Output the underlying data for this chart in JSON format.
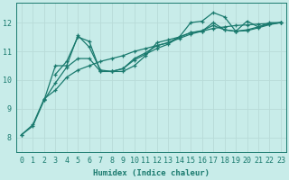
{
  "bg_color": "#c8ece9",
  "grid_color": "#b8dbd8",
  "line_color": "#1a7a6e",
  "xlabel": "Humidex (Indice chaleur)",
  "xlim": [
    -0.5,
    23.5
  ],
  "ylim": [
    7.5,
    12.7
  ],
  "yticks": [
    8,
    9,
    10,
    11,
    12
  ],
  "xticks": [
    0,
    1,
    2,
    3,
    4,
    5,
    6,
    7,
    8,
    9,
    10,
    11,
    12,
    13,
    14,
    15,
    16,
    17,
    18,
    19,
    20,
    21,
    22,
    23
  ],
  "series": [
    {
      "x": [
        0,
        1,
        2,
        3,
        4,
        5,
        6,
        7,
        8,
        9,
        10,
        11,
        12,
        13,
        14,
        15,
        16,
        17,
        18,
        19,
        20,
        21,
        22,
        23
      ],
      "y": [
        8.1,
        8.4,
        9.3,
        10.5,
        10.5,
        11.55,
        11.15,
        10.35,
        10.3,
        10.3,
        10.5,
        10.85,
        11.3,
        11.4,
        11.5,
        12.0,
        12.05,
        12.35,
        12.2,
        11.7,
        12.05,
        11.85,
        12.0,
        12.0
      ]
    },
    {
      "x": [
        3,
        4,
        5,
        6,
        7,
        8,
        9,
        10,
        11,
        12,
        13,
        14,
        15,
        16,
        17,
        18,
        19,
        20,
        21,
        22,
        23
      ],
      "y": [
        10.2,
        10.65,
        11.5,
        11.35,
        10.3,
        10.3,
        10.4,
        10.75,
        10.95,
        11.2,
        11.3,
        11.5,
        11.65,
        11.7,
        12.0,
        11.75,
        11.7,
        11.72,
        11.82,
        11.93,
        12.0
      ]
    },
    {
      "x": [
        0,
        1,
        2,
        3,
        4,
        5,
        6,
        7,
        8,
        9,
        10,
        11,
        12,
        13,
        14,
        15,
        16,
        17,
        18,
        19,
        20,
        21,
        22,
        23
      ],
      "y": [
        8.1,
        8.45,
        9.35,
        9.65,
        10.1,
        10.35,
        10.5,
        10.65,
        10.75,
        10.85,
        11.0,
        11.1,
        11.2,
        11.3,
        11.45,
        11.6,
        11.7,
        11.8,
        11.85,
        11.9,
        11.92,
        11.95,
        11.97,
        12.0
      ]
    },
    {
      "x": [
        2,
        3,
        4,
        5,
        6,
        7,
        8,
        9,
        10,
        11,
        12,
        13,
        14,
        15,
        16,
        17,
        18,
        19,
        20,
        21,
        22,
        23
      ],
      "y": [
        9.3,
        9.9,
        10.45,
        10.75,
        10.75,
        10.3,
        10.3,
        10.4,
        10.7,
        10.9,
        11.1,
        11.25,
        11.5,
        11.65,
        11.72,
        11.9,
        11.75,
        11.7,
        11.75,
        11.85,
        11.95,
        12.0
      ]
    }
  ]
}
